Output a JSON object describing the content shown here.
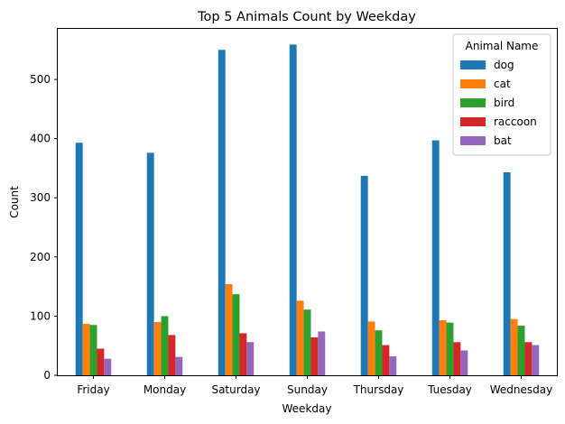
{
  "chart_data": {
    "type": "bar",
    "title": "Top 5 Animals Count by Weekday",
    "xlabel": "Weekday",
    "ylabel": "Count",
    "categories": [
      "Friday",
      "Monday",
      "Saturday",
      "Sunday",
      "Thursday",
      "Tuesday",
      "Wednesday"
    ],
    "ylim": [
      0,
      587
    ],
    "yticks": [
      0,
      100,
      200,
      300,
      400,
      500
    ],
    "grid": false,
    "legend": {
      "title": "Animal Name",
      "placement": "top-right"
    },
    "series": [
      {
        "name": "dog",
        "color": "#1f77b4",
        "values": [
          393,
          376,
          550,
          559,
          337,
          397,
          343
        ]
      },
      {
        "name": "cat",
        "color": "#ff7f0e",
        "values": [
          87,
          90,
          154,
          126,
          91,
          93,
          95
        ]
      },
      {
        "name": "bird",
        "color": "#2ca02c",
        "values": [
          85,
          100,
          137,
          111,
          76,
          89,
          84
        ]
      },
      {
        "name": "raccoon",
        "color": "#d62728",
        "values": [
          45,
          68,
          71,
          64,
          51,
          56,
          56
        ]
      },
      {
        "name": "bat",
        "color": "#9467bd",
        "values": [
          28,
          31,
          56,
          74,
          32,
          42,
          51
        ]
      }
    ]
  }
}
